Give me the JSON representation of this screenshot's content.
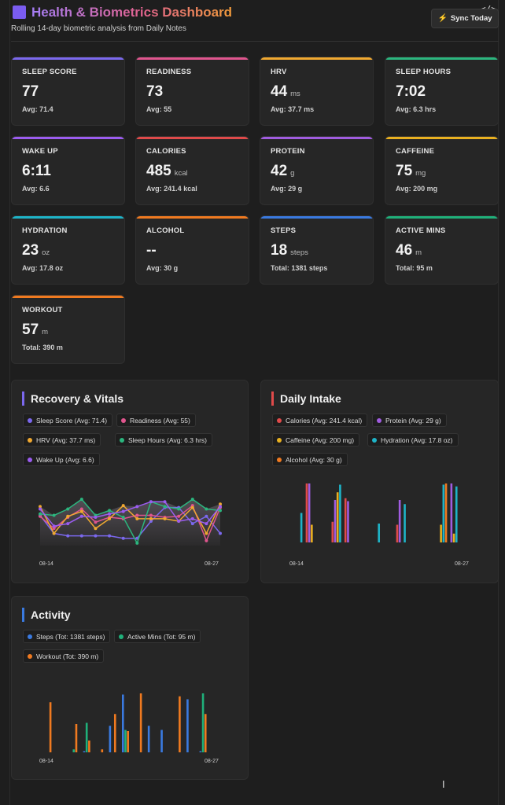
{
  "header": {
    "title": "Health & Biometrics Dashboard",
    "subtitle": "Rolling 14-day biometric analysis from Daily Notes",
    "sync_label": "Sync Today",
    "code_glyph": "</>"
  },
  "cards": [
    {
      "label": "SLEEP SCORE",
      "value": "77",
      "unit": "",
      "sub": "Avg: 71.4",
      "color": "#7b68ee"
    },
    {
      "label": "READINESS",
      "value": "73",
      "unit": "",
      "sub": "Avg: 55",
      "color": "#e0558e"
    },
    {
      "label": "HRV",
      "value": "44",
      "unit": "ms",
      "sub": "Avg: 37.7 ms",
      "color": "#f0a830"
    },
    {
      "label": "SLEEP HOURS",
      "value": "7:02",
      "unit": "",
      "sub": "Avg: 6.3 hrs",
      "color": "#2bb67e"
    },
    {
      "label": "WAKE UP",
      "value": "6:11",
      "unit": "",
      "sub": "Avg: 6.6",
      "color": "#9b5cf0"
    },
    {
      "label": "CALORIES",
      "value": "485",
      "unit": "kcal",
      "sub": "Avg: 241.4 kcal",
      "color": "#e04a4a"
    },
    {
      "label": "PROTEIN",
      "value": "42",
      "unit": "g",
      "sub": "Avg: 29 g",
      "color": "#a05ce0"
    },
    {
      "label": "CAFFEINE",
      "value": "75",
      "unit": "mg",
      "sub": "Avg: 200 mg",
      "color": "#e8b020"
    },
    {
      "label": "HYDRATION",
      "value": "23",
      "unit": "oz",
      "sub": "Avg: 17.8 oz",
      "color": "#1eb4c8"
    },
    {
      "label": "ALCOHOL",
      "value": "--",
      "unit": "",
      "sub": "Avg: 30 g",
      "color": "#f07a20"
    },
    {
      "label": "STEPS",
      "value": "18",
      "unit": "steps",
      "sub": "Total: 1381 steps",
      "color": "#3a7ae0"
    },
    {
      "label": "ACTIVE MINS",
      "value": "46",
      "unit": "m",
      "sub": "Total: 95 m",
      "color": "#1fb07a"
    },
    {
      "label": "WORKOUT",
      "value": "57",
      "unit": "m",
      "sub": "Total: 390 m",
      "color": "#f07a20"
    }
  ],
  "panels": {
    "recovery": {
      "title": "Recovery & Vitals",
      "accent": "#7b68ee",
      "legend": [
        {
          "label": "Sleep Score (Avg: 71.4)",
          "color": "#7b68ee"
        },
        {
          "label": "Readiness (Avg: 55)",
          "color": "#e0558e"
        },
        {
          "label": "HRV (Avg: 37.7 ms)",
          "color": "#f0a830"
        },
        {
          "label": "Sleep Hours (Avg: 6.3 hrs)",
          "color": "#2bb67e"
        },
        {
          "label": "Wake Up (Avg: 6.6)",
          "color": "#9b5cf0"
        }
      ],
      "x_start": "08-14",
      "x_end": "08-27"
    },
    "intake": {
      "title": "Daily Intake",
      "accent": "#e04a4a",
      "legend": [
        {
          "label": "Calories (Avg: 241.4 kcal)",
          "color": "#e04a4a"
        },
        {
          "label": "Protein (Avg: 29 g)",
          "color": "#a05ce0"
        },
        {
          "label": "Caffeine (Avg: 200 mg)",
          "color": "#e8b020"
        },
        {
          "label": "Hydration (Avg: 17.8 oz)",
          "color": "#1eb4c8"
        },
        {
          "label": "Alcohol (Avg: 30 g)",
          "color": "#f07a20"
        }
      ],
      "x_start": "08-14",
      "x_end": "08-27"
    },
    "activity": {
      "title": "Activity",
      "accent": "#3a7ae0",
      "legend": [
        {
          "label": "Steps (Tot: 1381 steps)",
          "color": "#3a7ae0"
        },
        {
          "label": "Active Mins (Tot: 95 m)",
          "color": "#1fb07a"
        },
        {
          "label": "Workout (Tot: 390 m)",
          "color": "#f07a20"
        }
      ],
      "x_start": "08-14",
      "x_end": "08-27"
    }
  },
  "chart_data": [
    {
      "type": "line",
      "title": "Recovery & Vitals",
      "x_start": "08-14",
      "x_end": "08-27",
      "n_points": 14,
      "series": [
        {
          "name": "Sleep Score",
          "color": "#7b68ee",
          "values": [
            0.62,
            0.25,
            0.2,
            0.2,
            0.2,
            0.2,
            0.15,
            0.15,
            0.5,
            0.78,
            0.78,
            0.45,
            0.6,
            0.25
          ]
        },
        {
          "name": "Readiness",
          "color": "#e0558e",
          "values": [
            0.6,
            0.35,
            0.58,
            0.75,
            0.48,
            0.58,
            0.55,
            0.62,
            0.62,
            0.58,
            0.6,
            0.82,
            0.1,
            0.78
          ]
        },
        {
          "name": "HRV",
          "color": "#f0a830",
          "values": [
            0.8,
            0.25,
            0.6,
            0.7,
            0.35,
            0.55,
            0.82,
            0.55,
            0.55,
            0.55,
            0.5,
            0.78,
            0.25,
            0.85
          ]
        },
        {
          "name": "Sleep Hours",
          "color": "#2bb67e",
          "values": [
            0.65,
            0.62,
            0.75,
            0.95,
            0.62,
            0.72,
            0.58,
            0.05,
            0.9,
            0.8,
            0.75,
            0.95,
            0.75,
            0.72
          ]
        },
        {
          "name": "Wake Up",
          "color": "#9b5cf0",
          "values": [
            0.75,
            0.4,
            0.45,
            0.6,
            0.58,
            0.65,
            0.7,
            0.8,
            0.9,
            0.9,
            0.5,
            0.55,
            0.45,
            0.8
          ]
        }
      ]
    },
    {
      "type": "bar",
      "title": "Daily Intake",
      "x_start": "08-14",
      "x_end": "08-27",
      "n_points": 14,
      "series": [
        {
          "name": "Calories",
          "color": "#e04a4a",
          "values": [
            0,
            1.0,
            0,
            0.35,
            0.75,
            0,
            0,
            0,
            0.3,
            0,
            0,
            0,
            0,
            0
          ]
        },
        {
          "name": "Protein",
          "color": "#a05ce0",
          "values": [
            0,
            1.0,
            0,
            0.72,
            0.7,
            0,
            0,
            0,
            0.72,
            0,
            0,
            0,
            1.0,
            0
          ]
        },
        {
          "name": "Caffeine",
          "color": "#e8b020",
          "values": [
            0,
            0.3,
            0,
            0.85,
            0,
            0,
            0,
            0,
            0,
            0,
            0,
            0.3,
            0.15,
            0
          ]
        },
        {
          "name": "Hydration",
          "color": "#1eb4c8",
          "values": [
            0.5,
            0,
            0,
            0.98,
            0,
            0,
            0.32,
            0,
            0.65,
            0,
            0,
            0.98,
            0.95,
            0
          ]
        },
        {
          "name": "Alcohol",
          "color": "#f07a20",
          "values": [
            0,
            0,
            0,
            0,
            0,
            0,
            0,
            0,
            0,
            0,
            0,
            1.0,
            0,
            0
          ]
        }
      ]
    },
    {
      "type": "bar",
      "title": "Activity",
      "x_start": "08-14",
      "x_end": "08-27",
      "n_points": 14,
      "series": [
        {
          "name": "Steps",
          "color": "#3a7ae0",
          "values": [
            0,
            0,
            0,
            0.02,
            0,
            0.45,
            0.98,
            0,
            0.45,
            0.38,
            0,
            0.9,
            0.02,
            0
          ],
          "value_note": ""
        },
        {
          "name": "Active Mins",
          "color": "#1fb07a",
          "values": [
            0,
            0,
            0.05,
            0.5,
            0,
            0,
            0.38,
            0,
            0,
            0,
            0,
            0,
            1.0,
            0
          ]
        },
        {
          "name": "Workout",
          "color": "#f07a20",
          "values": [
            0.85,
            0,
            0.48,
            0.2,
            0.05,
            0.65,
            0.36,
            1.0,
            0,
            0,
            0.95,
            0,
            0.65,
            0
          ]
        }
      ]
    }
  ]
}
